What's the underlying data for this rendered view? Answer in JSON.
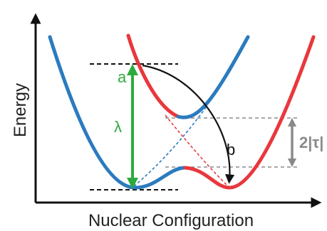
{
  "axes": {
    "x_label": "Nuclear Configuration",
    "y_label": "Energy"
  },
  "markers": {
    "a": "a",
    "lambda": "λ",
    "b": "b",
    "coupling": "2|τ|"
  },
  "colors": {
    "blue_curve": "#2b7bbf",
    "red_curve": "#e8383d",
    "green_arrow": "#2eaa3f",
    "grey_arrow": "#8a8a8a",
    "axis": "#111111",
    "black_arrow": "#111111"
  }
}
